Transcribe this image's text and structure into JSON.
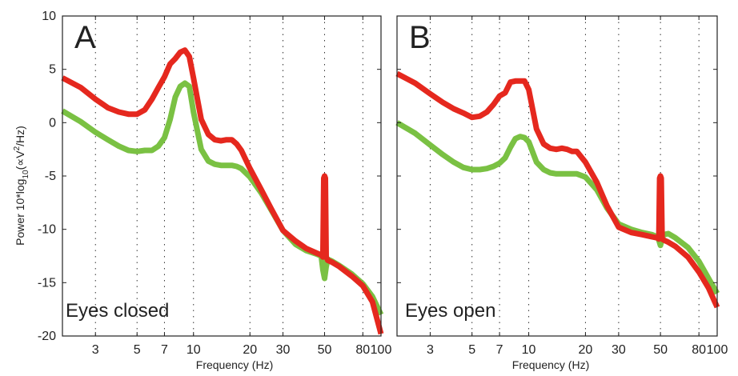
{
  "chart_data": [
    {
      "panel": "A",
      "caption": "Eyes closed",
      "type": "line",
      "xlabel": "Frequency (Hz)",
      "ylabel": "Power 10*log10(∝V2/Hz)",
      "xscale": "log",
      "xlim": [
        2,
        100
      ],
      "ylim": [
        -20,
        10
      ],
      "xticks": [
        3,
        5,
        7,
        10,
        20,
        30,
        50,
        80,
        100
      ],
      "yticks": [
        -20,
        -15,
        -10,
        -5,
        0,
        5,
        10
      ],
      "grid": "vertical dotted at x ticks",
      "series": [
        {
          "color": "#7ac143",
          "x": [
            2,
            2.5,
            3,
            3.5,
            4,
            4.5,
            5,
            5.5,
            6,
            6.5,
            7,
            7.5,
            8,
            8.5,
            9,
            9.5,
            10,
            11,
            12,
            13,
            14,
            15,
            16,
            17,
            18,
            20,
            23,
            26,
            30,
            35,
            40,
            45,
            48,
            49,
            50,
            51,
            52,
            55,
            60,
            70,
            80,
            90,
            100
          ],
          "y": [
            1.1,
            0.1,
            -0.9,
            -1.6,
            -2.2,
            -2.6,
            -2.7,
            -2.6,
            -2.6,
            -2.2,
            -1.4,
            0.3,
            2.4,
            3.4,
            3.7,
            3.4,
            1.0,
            -2.5,
            -3.6,
            -3.9,
            -4.0,
            -4.0,
            -4.0,
            -4.1,
            -4.3,
            -5.1,
            -6.6,
            -8.2,
            -10.1,
            -11.4,
            -12.0,
            -12.3,
            -12.5,
            -13.8,
            -14.6,
            -13.5,
            -12.8,
            -13.0,
            -13.4,
            -14.2,
            -15.1,
            -16.3,
            -18.0
          ]
        },
        {
          "color": "#e5281e",
          "x": [
            2,
            2.5,
            3,
            3.5,
            4,
            4.5,
            5,
            5.5,
            6,
            6.5,
            7,
            7.5,
            8,
            8.5,
            9,
            9.5,
            10,
            11,
            12,
            13,
            14,
            15,
            16,
            17,
            18,
            20,
            23,
            26,
            30,
            35,
            40,
            45,
            48,
            49,
            49.5,
            50,
            50.5,
            51,
            52,
            55,
            60,
            70,
            80,
            90,
            100
          ],
          "y": [
            4.2,
            3.3,
            2.2,
            1.4,
            1.0,
            0.8,
            0.8,
            1.2,
            2.2,
            3.3,
            4.3,
            5.5,
            6.0,
            6.6,
            6.8,
            6.2,
            4.2,
            0.3,
            -1.1,
            -1.6,
            -1.7,
            -1.6,
            -1.6,
            -2.0,
            -2.6,
            -4.3,
            -6.3,
            -8.1,
            -10.1,
            -11.1,
            -11.8,
            -12.2,
            -12.4,
            -12.6,
            -5.2,
            -5.0,
            -5.2,
            -12.6,
            -12.9,
            -13.1,
            -13.5,
            -14.4,
            -15.3,
            -16.8,
            -19.8
          ]
        }
      ]
    },
    {
      "panel": "B",
      "caption": "Eyes open",
      "type": "line",
      "xlabel": "Frequency (Hz)",
      "xscale": "log",
      "xlim": [
        2,
        100
      ],
      "ylim": [
        -20,
        10
      ],
      "xticks": [
        3,
        5,
        7,
        10,
        20,
        30,
        50,
        80,
        100
      ],
      "grid": "vertical dotted at x ticks",
      "series": [
        {
          "color": "#7ac143",
          "x": [
            2,
            2.5,
            3,
            3.5,
            4,
            4.5,
            5,
            5.5,
            6,
            6.5,
            7,
            7.5,
            8,
            8.5,
            9,
            9.5,
            10,
            11,
            12,
            13,
            14,
            15,
            16,
            17,
            18,
            20,
            23,
            26,
            30,
            35,
            40,
            45,
            48,
            49,
            50,
            51,
            52,
            55,
            60,
            70,
            80,
            90,
            100
          ],
          "y": [
            0.0,
            -1.0,
            -2.1,
            -3.0,
            -3.7,
            -4.2,
            -4.4,
            -4.4,
            -4.3,
            -4.1,
            -3.8,
            -3.3,
            -2.3,
            -1.5,
            -1.3,
            -1.4,
            -1.8,
            -3.7,
            -4.4,
            -4.7,
            -4.8,
            -4.8,
            -4.8,
            -4.8,
            -4.8,
            -5.1,
            -6.3,
            -8.0,
            -9.5,
            -10.0,
            -10.3,
            -10.5,
            -10.7,
            -11.0,
            -11.5,
            -10.9,
            -10.5,
            -10.4,
            -10.8,
            -11.7,
            -13.0,
            -14.6,
            -16.0
          ]
        },
        {
          "color": "#e5281e",
          "x": [
            2,
            2.5,
            3,
            3.5,
            4,
            4.5,
            5,
            5.5,
            6,
            6.5,
            7,
            7.5,
            8,
            8.5,
            9,
            9.5,
            10,
            11,
            12,
            13,
            14,
            15,
            16,
            17,
            18,
            20,
            23,
            26,
            30,
            35,
            40,
            45,
            48,
            49,
            49.5,
            50,
            50.5,
            51,
            52,
            55,
            60,
            70,
            80,
            90,
            100
          ],
          "y": [
            4.6,
            3.7,
            2.7,
            1.9,
            1.3,
            0.9,
            0.5,
            0.6,
            1.0,
            1.7,
            2.5,
            2.8,
            3.8,
            3.9,
            3.9,
            3.9,
            3.1,
            -0.6,
            -2.0,
            -2.4,
            -2.5,
            -2.4,
            -2.5,
            -2.7,
            -2.7,
            -3.7,
            -5.6,
            -7.8,
            -9.8,
            -10.3,
            -10.5,
            -10.7,
            -10.8,
            -10.9,
            -5.2,
            -5.0,
            -5.2,
            -10.9,
            -11.0,
            -11.2,
            -11.6,
            -12.6,
            -14.0,
            -15.5,
            -17.3
          ]
        }
      ]
    }
  ]
}
